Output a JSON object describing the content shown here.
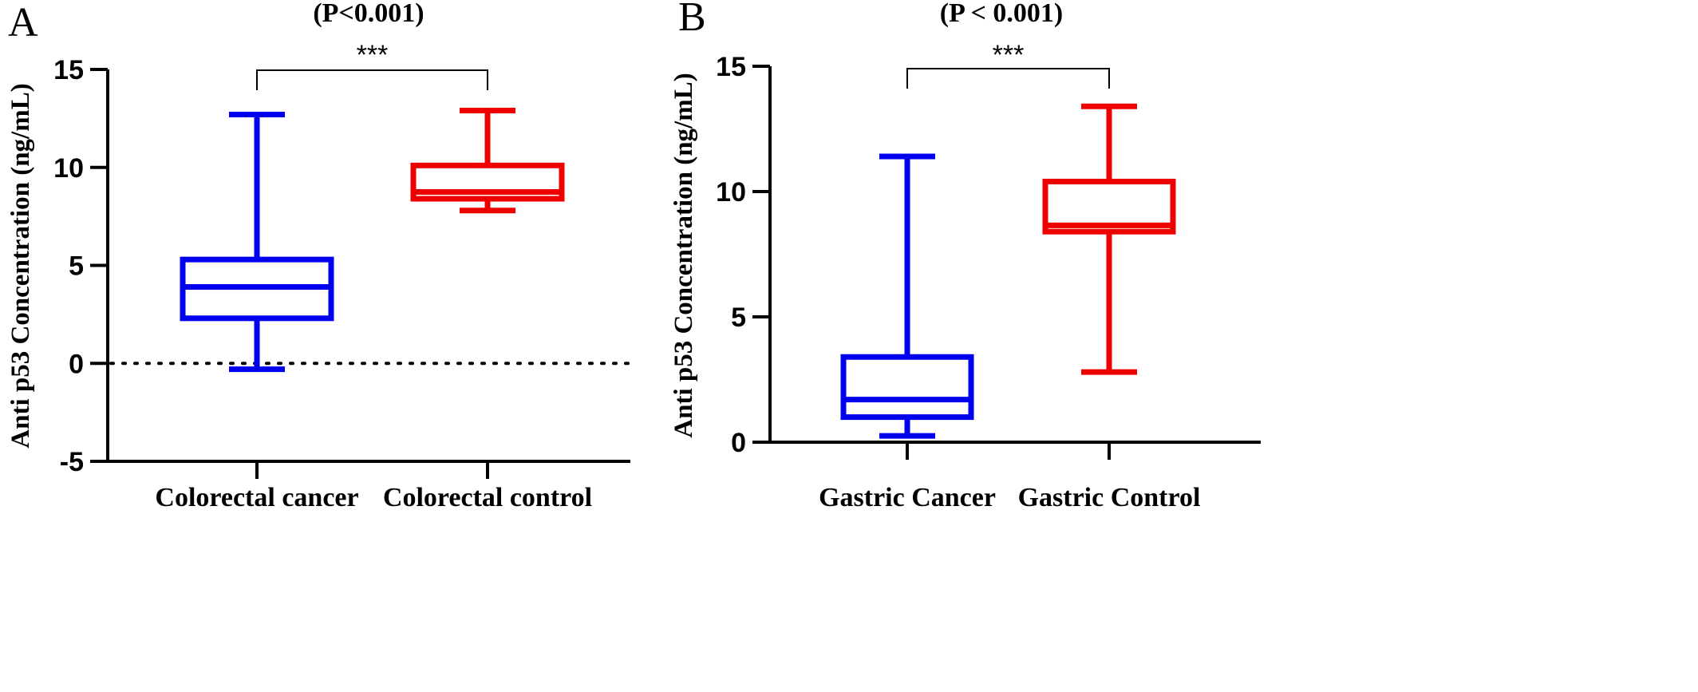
{
  "chart_data": [
    {
      "type": "box",
      "panel": "A",
      "title": "(P<0.001)",
      "ylabel": "Anti p53 Concentration (ng/mL)",
      "ylim": [
        -5,
        15
      ],
      "yticks": [
        -5,
        0,
        5,
        10,
        15
      ],
      "reference_line": 0,
      "significance": "***",
      "categories": [
        "Colorectal cancer",
        "Colorectal control"
      ],
      "boxes": [
        {
          "category": "Colorectal cancer",
          "min": -0.3,
          "q1": 2.3,
          "median": 3.9,
          "q3": 5.3,
          "max": 12.7,
          "color": "#0000ee"
        },
        {
          "category": "Colorectal control",
          "min": 7.8,
          "q1": 8.4,
          "median": 8.75,
          "q3": 10.1,
          "max": 12.9,
          "color": "#ee0000"
        }
      ]
    },
    {
      "type": "box",
      "panel": "B",
      "title": "(P < 0.001)",
      "ylabel": "Anti p53 Concentration (ng/mL)",
      "ylim": [
        0,
        15
      ],
      "yticks": [
        0,
        5,
        10,
        15
      ],
      "significance": "***",
      "categories": [
        "Gastric Cancer",
        "Gastric Control"
      ],
      "boxes": [
        {
          "category": "Gastric Cancer",
          "min": 0.25,
          "q1": 1.0,
          "median": 1.7,
          "q3": 3.4,
          "max": 11.4,
          "color": "#0000ee"
        },
        {
          "category": "Gastric Control",
          "min": 2.8,
          "q1": 8.4,
          "median": 8.65,
          "q3": 10.4,
          "max": 13.4,
          "color": "#ee0000"
        }
      ]
    }
  ]
}
